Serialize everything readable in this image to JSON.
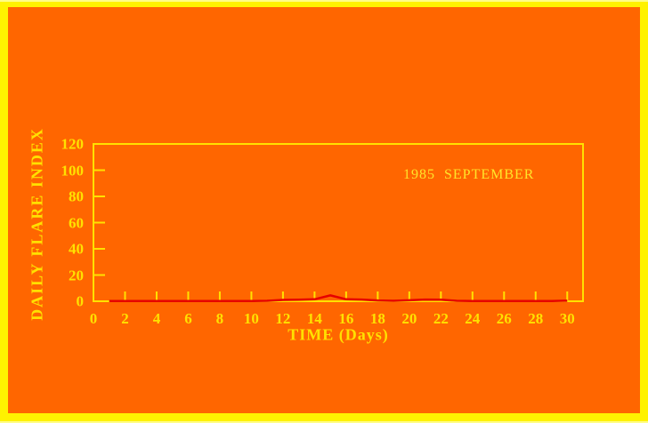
{
  "chart_data": {
    "type": "line",
    "title": "",
    "annotation": "1985  SEPTEMBER",
    "xlabel": "TIME (Days)",
    "ylabel": "DAILY FLARE INDEX",
    "xlim": [
      0,
      31
    ],
    "ylim": [
      0,
      120
    ],
    "x_ticks": [
      0,
      2,
      4,
      6,
      8,
      10,
      12,
      14,
      16,
      18,
      20,
      22,
      24,
      26,
      28,
      30
    ],
    "y_ticks": [
      0,
      20,
      40,
      60,
      80,
      100,
      120
    ],
    "grid": false,
    "legend": "none",
    "series": [
      {
        "name": "daily flare index",
        "x": [
          1,
          2,
          3,
          4,
          5,
          6,
          7,
          8,
          9,
          10,
          11,
          12,
          13,
          14,
          15,
          16,
          17,
          18,
          19,
          20,
          21,
          22,
          23,
          24,
          25,
          26,
          27,
          28,
          29,
          30
        ],
        "values": [
          0.2,
          0.2,
          0.2,
          0.2,
          0.2,
          0.2,
          0.2,
          0.2,
          0.2,
          0.2,
          0.3,
          1.0,
          1.2,
          1.5,
          4.5,
          1.5,
          1.3,
          0.6,
          0.3,
          0.8,
          1.3,
          1.2,
          0.3,
          0.2,
          0.2,
          0.2,
          0.2,
          0.2,
          0.2,
          0.4
        ]
      }
    ],
    "colors": {
      "canvas_border": "#FFF200",
      "plot_background": "#FF6600",
      "axis": "#FFE100",
      "label_text": "#FFE100",
      "annotation_text": "#FFE42A",
      "line": "#E60000"
    }
  }
}
